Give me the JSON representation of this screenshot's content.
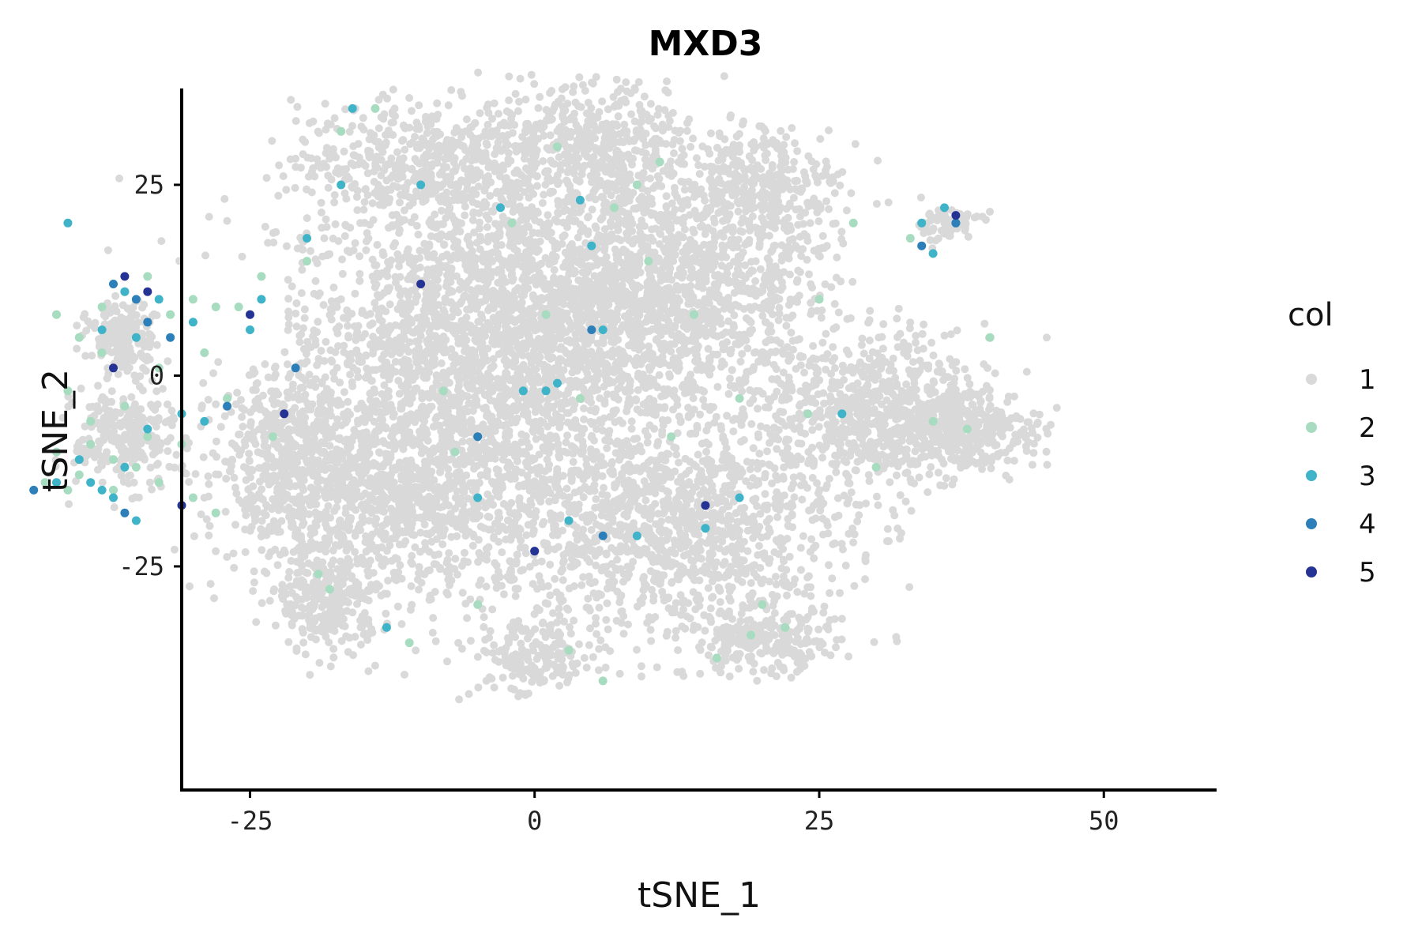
{
  "chart_data": {
    "type": "scatter",
    "title": "MXD3",
    "xlabel": "tSNE_1",
    "ylabel": "tSNE_2",
    "xlim": [
      -48,
      50
    ],
    "ylim": [
      -47,
      45
    ],
    "x_ticks": [
      -25,
      0,
      25,
      50
    ],
    "x_tick_labels": [
      "-25",
      "0",
      "25",
      "50"
    ],
    "y_ticks": [
      -25,
      0,
      25
    ],
    "y_tick_labels": [
      "-25",
      "0",
      "25"
    ],
    "grid": false,
    "legend_position": "right",
    "legend": {
      "title": "col",
      "entries": [
        {
          "label": "1",
          "color": "#d9d9d9"
        },
        {
          "label": "2",
          "color": "#a8dcc0"
        },
        {
          "label": "3",
          "color": "#3fb3c8"
        },
        {
          "label": "4",
          "color": "#2c7fb8"
        },
        {
          "label": "5",
          "color": "#253494"
        }
      ]
    },
    "series": [
      {
        "name": "2",
        "color": "#a8dcc0",
        "points": [
          [
            -42,
            8
          ],
          [
            -40,
            5
          ],
          [
            -38,
            3
          ],
          [
            -41,
            -2
          ],
          [
            -39,
            -6
          ],
          [
            -42,
            -10
          ],
          [
            -40,
            -13
          ],
          [
            -37,
            -15
          ],
          [
            -35,
            -12
          ],
          [
            -34,
            -8
          ],
          [
            -36,
            -4
          ],
          [
            -33,
            1
          ],
          [
            -35,
            5
          ],
          [
            -32,
            8
          ],
          [
            -30,
            10
          ],
          [
            -28,
            9
          ],
          [
            -29,
            3
          ],
          [
            -27,
            -3
          ],
          [
            -31,
            -9
          ],
          [
            -33,
            -14
          ],
          [
            -30,
            -16
          ],
          [
            -38,
            9
          ],
          [
            -36,
            11
          ],
          [
            -34,
            13
          ],
          [
            -39,
            -9
          ],
          [
            -43,
            -14
          ],
          [
            -41,
            -15
          ],
          [
            -37,
            -11
          ],
          [
            -26,
            9
          ],
          [
            -24,
            13
          ],
          [
            -28,
            -18
          ],
          [
            -23,
            -8
          ],
          [
            -19,
            -26
          ],
          [
            -18,
            -28
          ],
          [
            -11,
            -35
          ],
          [
            -7,
            -10
          ],
          [
            -5,
            -30
          ],
          [
            -2,
            20
          ],
          [
            1,
            8
          ],
          [
            4,
            -3
          ],
          [
            7,
            22
          ],
          [
            10,
            15
          ],
          [
            12,
            -8
          ],
          [
            15,
            -20
          ],
          [
            18,
            -3
          ],
          [
            20,
            -30
          ],
          [
            22,
            -33
          ],
          [
            25,
            10
          ],
          [
            28,
            20
          ],
          [
            30,
            -12
          ],
          [
            33,
            18
          ],
          [
            35,
            -6
          ],
          [
            38,
            -7
          ],
          [
            40,
            5
          ],
          [
            3,
            -36
          ],
          [
            6,
            -40
          ],
          [
            9,
            25
          ],
          [
            11,
            28
          ],
          [
            -14,
            35
          ],
          [
            -17,
            32
          ],
          [
            -20,
            15
          ],
          [
            14,
            8
          ],
          [
            -8,
            -2
          ],
          [
            19,
            -34
          ],
          [
            16,
            -37
          ],
          [
            24,
            -5
          ],
          [
            2,
            30
          ]
        ]
      },
      {
        "name": "3",
        "color": "#3fb3c8",
        "points": [
          [
            -36,
            11
          ],
          [
            -33,
            10
          ],
          [
            -38,
            6
          ],
          [
            -35,
            5
          ],
          [
            -40,
            -11
          ],
          [
            -38,
            -15
          ],
          [
            -36,
            -12
          ],
          [
            -34,
            -7
          ],
          [
            -31,
            -5
          ],
          [
            -29,
            -6
          ],
          [
            -37,
            -16
          ],
          [
            -39,
            -14
          ],
          [
            -42,
            -14
          ],
          [
            -35,
            -19
          ],
          [
            -25,
            6
          ],
          [
            -24,
            10
          ],
          [
            -20,
            18
          ],
          [
            -17,
            25
          ],
          [
            -16,
            35
          ],
          [
            -10,
            25
          ],
          [
            -3,
            22
          ],
          [
            5,
            17
          ],
          [
            4,
            23
          ],
          [
            2,
            -1
          ],
          [
            1,
            -2
          ],
          [
            -1,
            -2
          ],
          [
            -5,
            -16
          ],
          [
            -13,
            -33
          ],
          [
            3,
            -19
          ],
          [
            9,
            -21
          ],
          [
            15,
            -20
          ],
          [
            18,
            -16
          ],
          [
            27,
            -5
          ],
          [
            34,
            20
          ],
          [
            36,
            22
          ],
          [
            35,
            16
          ],
          [
            37,
            20
          ],
          [
            -41,
            20
          ],
          [
            -30,
            7
          ],
          [
            6,
            6
          ]
        ]
      },
      {
        "name": "4",
        "color": "#2c7fb8",
        "points": [
          [
            -37,
            12
          ],
          [
            -35,
            10
          ],
          [
            -34,
            7
          ],
          [
            -32,
            5
          ],
          [
            5,
            6
          ],
          [
            -5,
            -8
          ],
          [
            6,
            -21
          ],
          [
            0,
            -23
          ],
          [
            37,
            20
          ],
          [
            -44,
            -15
          ],
          [
            -36,
            -18
          ],
          [
            -27,
            -4
          ],
          [
            34,
            17
          ],
          [
            -21,
            1
          ]
        ]
      },
      {
        "name": "5",
        "color": "#253494",
        "points": [
          [
            -36,
            13
          ],
          [
            -34,
            11
          ],
          [
            -25,
            8
          ],
          [
            -37,
            1
          ],
          [
            -31,
            -17
          ],
          [
            37,
            21
          ],
          [
            -22,
            -5
          ],
          [
            15,
            -17
          ],
          [
            0,
            -23
          ],
          [
            -10,
            12
          ]
        ]
      }
    ]
  }
}
